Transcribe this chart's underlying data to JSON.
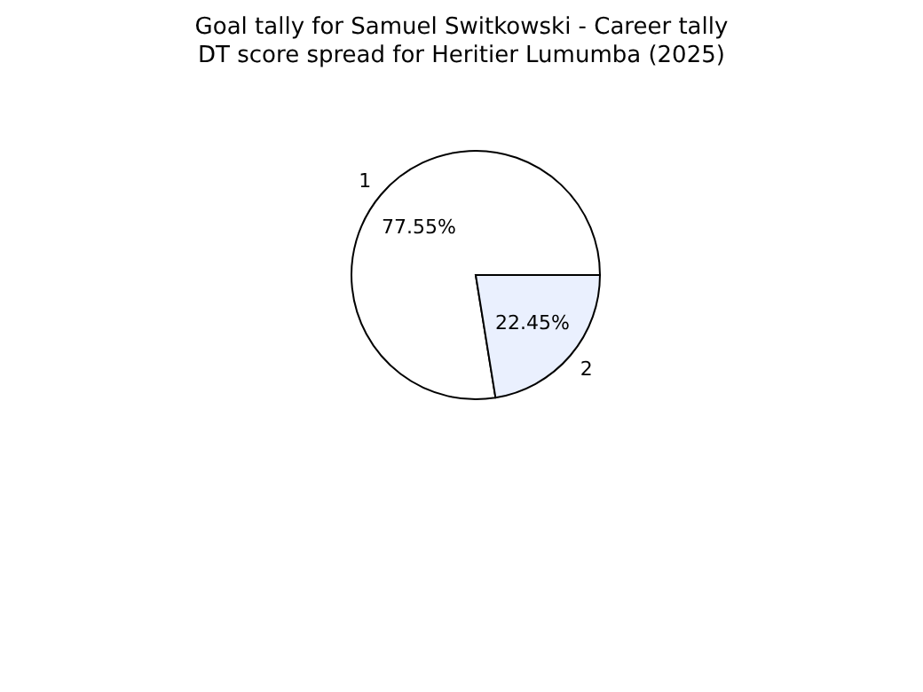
{
  "chart_data": {
    "type": "pie",
    "title": "Goal tally for Samuel Switkowski - Career tally",
    "subtitle": "DT score spread for Heritier Lumumba (2025)",
    "categories": [
      "1",
      "2"
    ],
    "values": [
      77.55,
      22.45
    ],
    "colors": [
      "#ffffff",
      "#eaf0fe"
    ],
    "value_labels": [
      "77.55%",
      "22.45%"
    ]
  }
}
